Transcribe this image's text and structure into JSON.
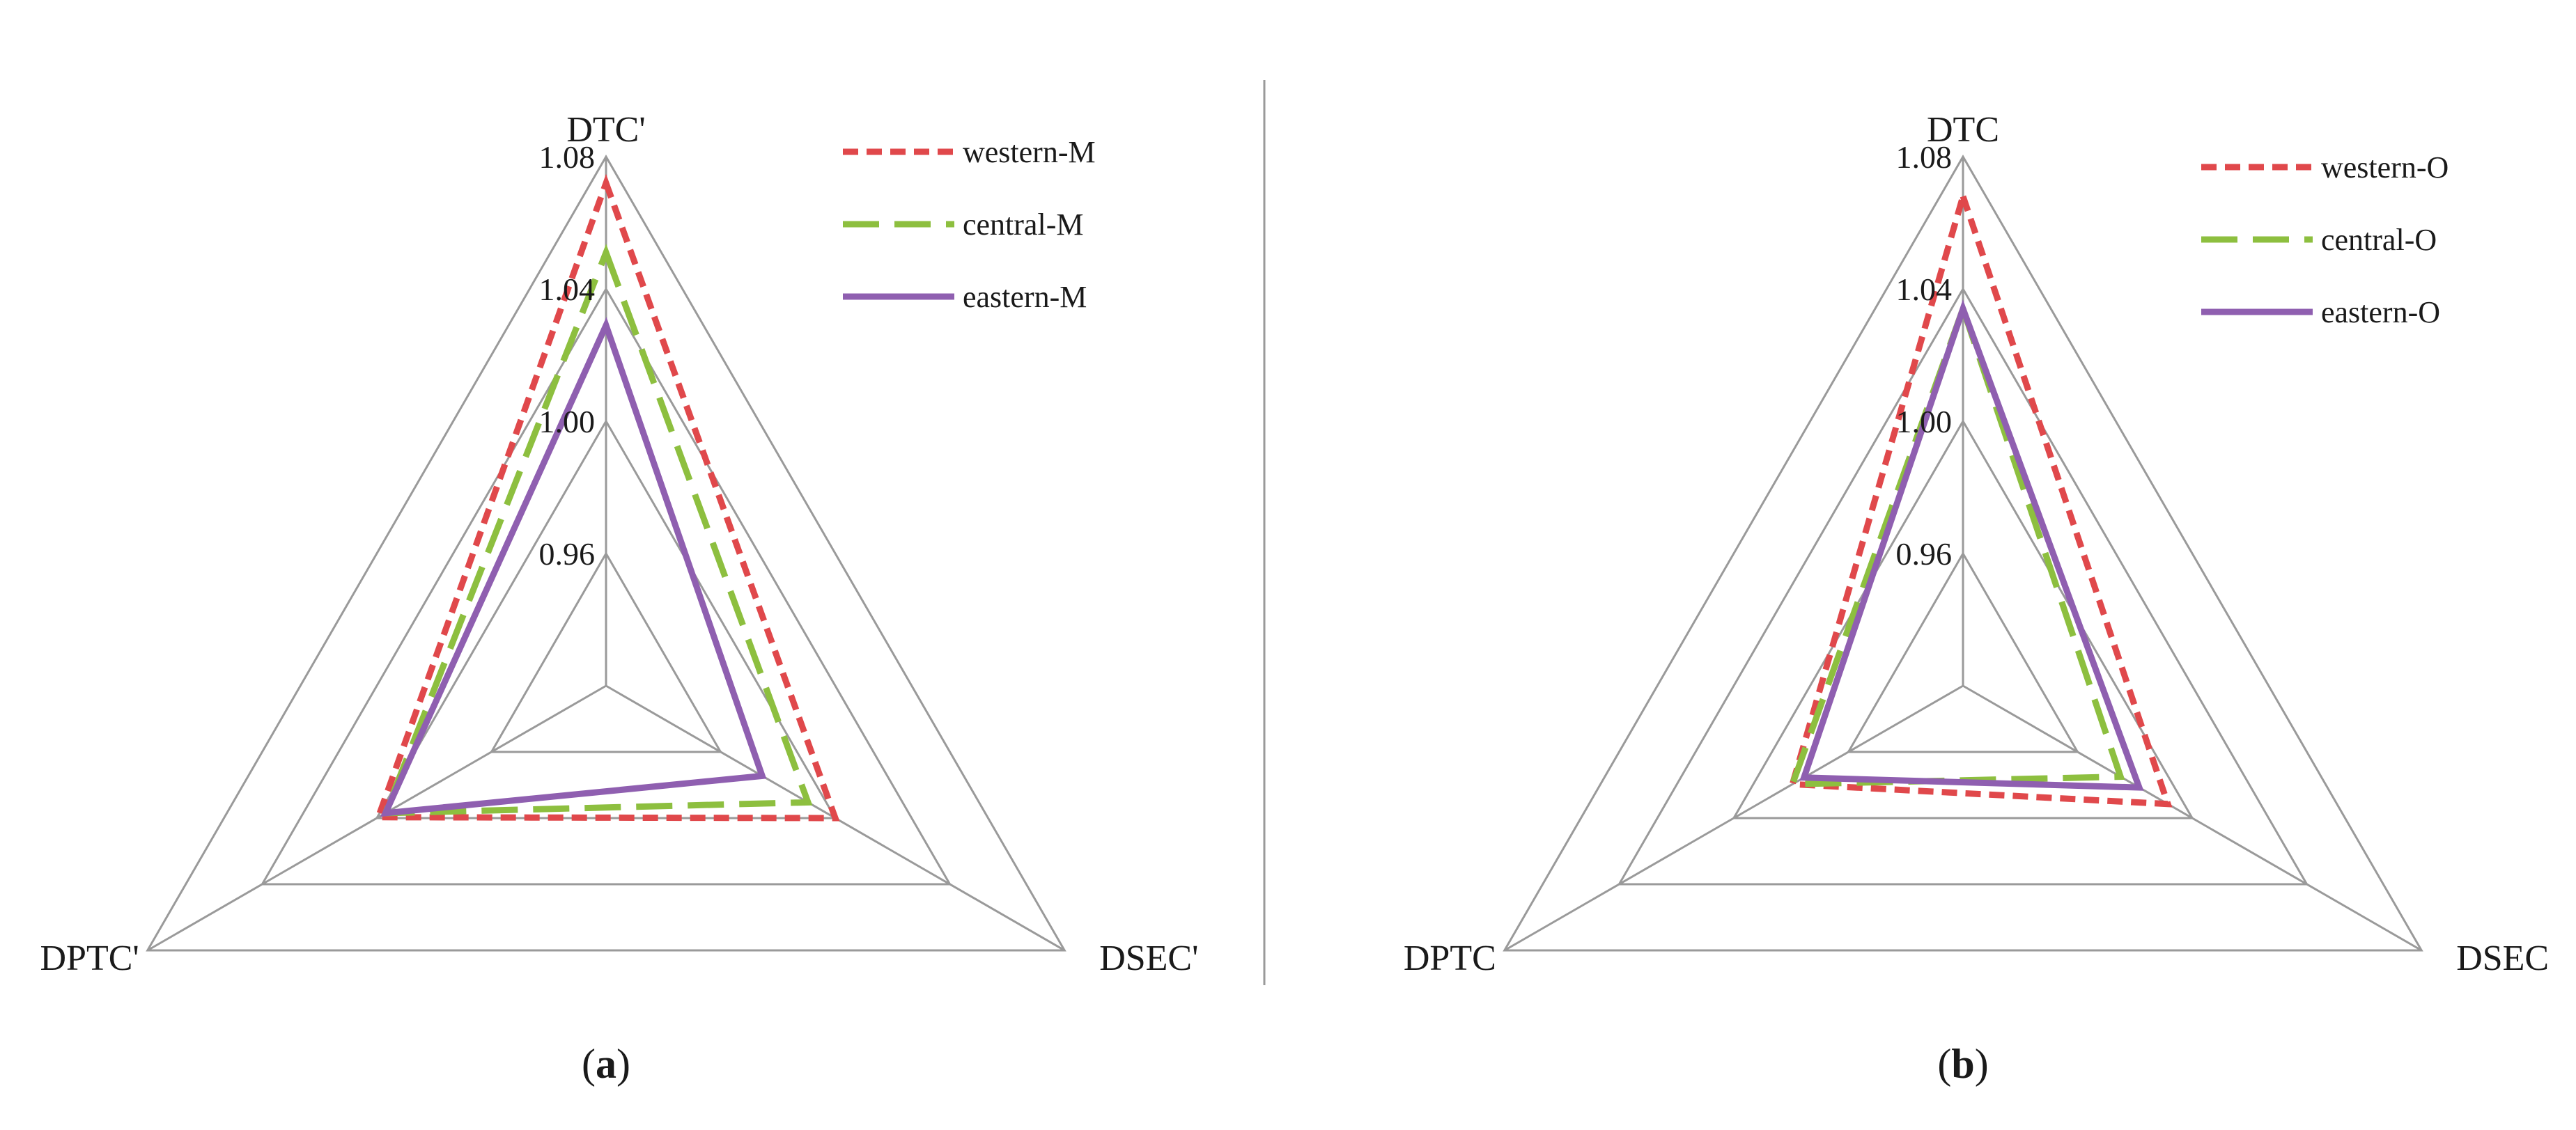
{
  "colors": {
    "western": "#e0484b",
    "central": "#8dbf3f",
    "eastern": "#8f5fb0",
    "grid": "#9a9a9a",
    "divider": "#9a9a9a"
  },
  "chart_data": [
    {
      "type": "radar",
      "panel_label": {
        "open": "(",
        "letter": "a",
        "close": ")"
      },
      "axes": [
        "DTC'",
        "DSEC'",
        "DPTC'"
      ],
      "ticks": [
        "0.96",
        "1.00",
        "1.04",
        "1.08"
      ],
      "tick_values": [
        0.96,
        1.0,
        1.04,
        1.08
      ],
      "range": [
        0.92,
        1.08
      ],
      "grid": true,
      "legend_position": "top-right",
      "series": [
        {
          "name": "western-M",
          "values": [
            1.072,
            1.0,
            0.9995
          ],
          "style": "short-dash",
          "color_key": "western"
        },
        {
          "name": "central-M",
          "values": [
            1.051,
            0.9905,
            0.997
          ],
          "style": "long-dash",
          "color_key": "central"
        },
        {
          "name": "eastern-M",
          "values": [
            1.029,
            0.9745,
            0.997
          ],
          "style": "solid",
          "color_key": "eastern"
        }
      ]
    },
    {
      "type": "radar",
      "panel_label": {
        "open": "(",
        "letter": "b",
        "close": ")"
      },
      "axes": [
        "DTC",
        "DSEC",
        "DPTC"
      ],
      "ticks": [
        "0.96",
        "1.00",
        "1.04",
        "1.08"
      ],
      "tick_values": [
        0.96,
        1.0,
        1.04,
        1.08
      ],
      "range": [
        0.92,
        1.08
      ],
      "grid": true,
      "legend_position": "top-right",
      "series": [
        {
          "name": "western-O",
          "values": [
            1.068,
            0.9915,
            0.9795
          ],
          "style": "short-dash",
          "color_key": "western"
        },
        {
          "name": "central-O",
          "values": [
            1.034,
            0.975,
            0.9795
          ],
          "style": "long-dash",
          "color_key": "central"
        },
        {
          "name": "eastern-O",
          "values": [
            1.034,
            0.9815,
            0.9755
          ],
          "style": "solid",
          "color_key": "eastern"
        }
      ]
    }
  ]
}
